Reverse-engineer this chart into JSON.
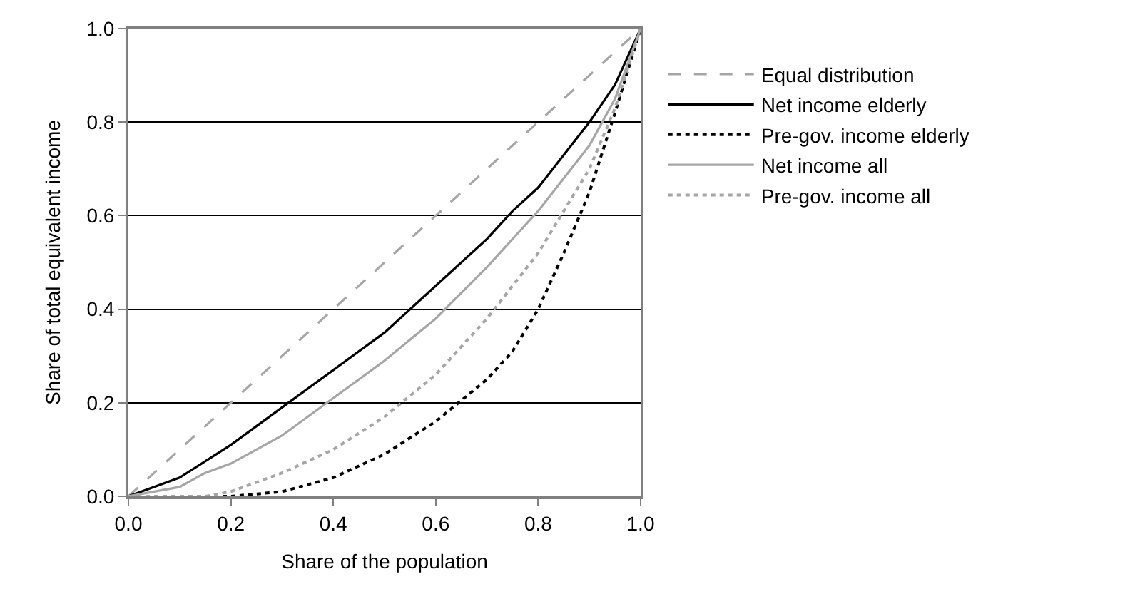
{
  "chart_data": {
    "type": "line",
    "xlabel": "Share of the population",
    "ylabel": "Share of total equivalent income",
    "xlim": [
      0,
      1
    ],
    "ylim": [
      0,
      1
    ],
    "xticks": [
      {
        "value": 0,
        "label": "0.0"
      },
      {
        "value": 0.2,
        "label": "0.2"
      },
      {
        "value": 0.4,
        "label": "0.4"
      },
      {
        "value": 0.6,
        "label": "0.6"
      },
      {
        "value": 0.8,
        "label": "0.8"
      },
      {
        "value": 1,
        "label": "1.0"
      }
    ],
    "yticks": [
      {
        "value": 0,
        "label": "0.0"
      },
      {
        "value": 0.2,
        "label": "0.2"
      },
      {
        "value": 0.4,
        "label": "0.4"
      },
      {
        "value": 0.6,
        "label": "0.6"
      },
      {
        "value": 0.8,
        "label": "0.8"
      },
      {
        "value": 1,
        "label": "1.0"
      }
    ],
    "grid": "y",
    "legend": "right",
    "marker": "none",
    "series": [
      {
        "name": "Equal distribution",
        "color": "#a6a6a6",
        "line_style": "dashed",
        "x": [
          0,
          1
        ],
        "values": [
          0,
          1
        ]
      },
      {
        "name": "Net income elderly",
        "color": "#000000",
        "line_style": "solid",
        "x": [
          0,
          0.1,
          0.2,
          0.3,
          0.4,
          0.5,
          0.6,
          0.7,
          0.75,
          0.8,
          0.9,
          0.95,
          1
        ],
        "values": [
          0,
          0.04,
          0.11,
          0.19,
          0.27,
          0.35,
          0.45,
          0.55,
          0.61,
          0.66,
          0.8,
          0.88,
          1
        ]
      },
      {
        "name": "Pre-gov. income elderly",
        "color": "#000000",
        "line_style": "dotted",
        "x": [
          0,
          0.2,
          0.3,
          0.4,
          0.5,
          0.6,
          0.7,
          0.75,
          0.8,
          0.85,
          0.9,
          0.95,
          1
        ],
        "values": [
          0,
          0,
          0.01,
          0.04,
          0.09,
          0.16,
          0.25,
          0.31,
          0.4,
          0.52,
          0.65,
          0.82,
          1
        ]
      },
      {
        "name": "Net income all",
        "color": "#a6a6a6",
        "line_style": "solid",
        "x": [
          0,
          0.1,
          0.15,
          0.2,
          0.3,
          0.4,
          0.5,
          0.6,
          0.7,
          0.8,
          0.9,
          0.95,
          1
        ],
        "values": [
          0,
          0.02,
          0.05,
          0.07,
          0.13,
          0.21,
          0.29,
          0.38,
          0.49,
          0.61,
          0.75,
          0.85,
          1
        ]
      },
      {
        "name": "Pre-gov. income all",
        "color": "#a6a6a6",
        "line_style": "dotted",
        "x": [
          0,
          0.15,
          0.2,
          0.3,
          0.4,
          0.5,
          0.6,
          0.7,
          0.8,
          0.9,
          0.95,
          1
        ],
        "values": [
          0,
          0,
          0.01,
          0.05,
          0.1,
          0.17,
          0.26,
          0.38,
          0.52,
          0.7,
          0.83,
          1
        ]
      }
    ]
  }
}
